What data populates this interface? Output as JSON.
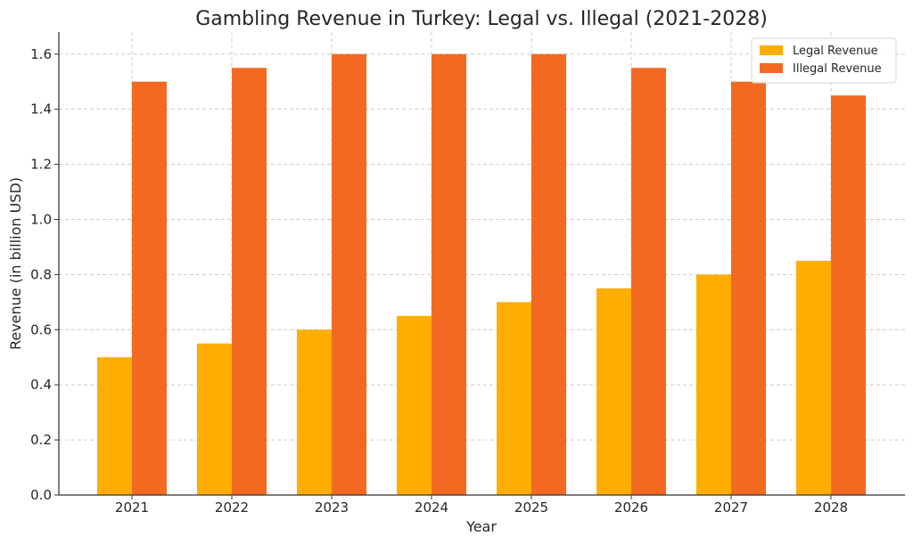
{
  "chart_data": {
    "type": "bar",
    "title": "Gambling Revenue in Turkey: Legal vs. Illegal (2021-2028)",
    "xlabel": "Year",
    "ylabel": "Revenue (in billion USD)",
    "categories": [
      "2021",
      "2022",
      "2023",
      "2024",
      "2025",
      "2026",
      "2027",
      "2028"
    ],
    "series": [
      {
        "name": "Legal Revenue",
        "color": "#FFAD00",
        "values": [
          0.5,
          0.55,
          0.6,
          0.65,
          0.7,
          0.75,
          0.8,
          0.85
        ]
      },
      {
        "name": "Illegal Revenue",
        "color": "#F46922",
        "values": [
          1.5,
          1.55,
          1.6,
          1.6,
          1.6,
          1.55,
          1.5,
          1.45
        ]
      }
    ],
    "ylim": [
      0,
      1.68
    ],
    "yticks": [
      "0.0",
      "0.2",
      "0.4",
      "0.6",
      "0.8",
      "1.0",
      "1.2",
      "1.4",
      "1.6"
    ],
    "grid": true,
    "legend_position": "top-right"
  }
}
